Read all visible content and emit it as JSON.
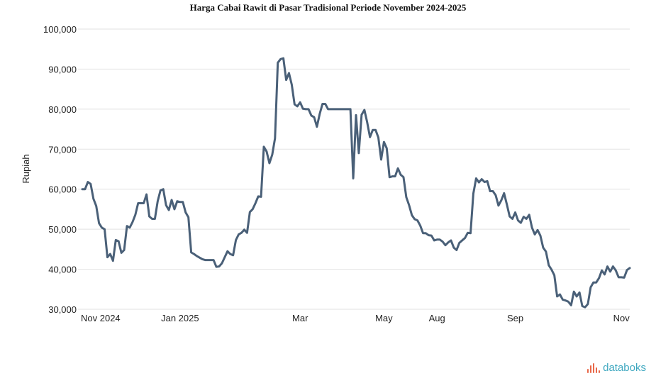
{
  "chart_data": {
    "type": "line",
    "title": "Harga Cabai Rawit di Pasar Tradisional Periode November 2024-2025",
    "ylabel": "Rupiah",
    "ylim": [
      30000,
      100000
    ],
    "yticks": [
      "30,000",
      "40,000",
      "50,000",
      "60,000",
      "70,000",
      "80,000",
      "90,000",
      "100,000"
    ],
    "xticks": [
      {
        "label": "Nov 2024",
        "index": 0
      },
      {
        "label": "Jan 2025",
        "index": 35
      },
      {
        "label": "Mar",
        "index": 78
      },
      {
        "label": "May",
        "index": 108
      },
      {
        "label": "Aug",
        "index": 127
      },
      {
        "label": "Sep",
        "index": 155
      },
      {
        "label": "Nov",
        "index": 193
      }
    ],
    "grid": true,
    "color": "#4a6078",
    "values": [
      60000,
      60000,
      61800,
      61300,
      57600,
      55800,
      51500,
      50400,
      50000,
      43000,
      43800,
      42100,
      47300,
      47000,
      44100,
      44800,
      50800,
      50400,
      51800,
      53600,
      56500,
      56500,
      56500,
      58700,
      53200,
      52600,
      52600,
      57000,
      59700,
      60000,
      56000,
      54800,
      57300,
      55000,
      57000,
      56800,
      56800,
      54200,
      53000,
      44200,
      43800,
      43300,
      42900,
      42500,
      42300,
      42300,
      42300,
      42300,
      40600,
      40700,
      41500,
      43000,
      44500,
      43800,
      43500,
      47300,
      48700,
      49100,
      49900,
      49100,
      54300,
      55000,
      56500,
      58200,
      58100,
      70600,
      69400,
      66500,
      68600,
      72700,
      91600,
      92500,
      92700,
      87300,
      89000,
      86100,
      81200,
      80700,
      81700,
      80100,
      80000,
      80000,
      78400,
      78000,
      75600,
      78800,
      81300,
      81300,
      80000,
      80000,
      80000,
      80000,
      80000,
      80000,
      80000,
      80000,
      80000,
      62700,
      78500,
      69000,
      78600,
      79800,
      76700,
      73000,
      74800,
      74800,
      72900,
      67400,
      71800,
      70200,
      63000,
      63200,
      63200,
      65200,
      63600,
      63000,
      58000,
      56000,
      53500,
      52500,
      52200,
      50900,
      49000,
      49000,
      48500,
      48400,
      47200,
      47400,
      47400,
      46900,
      46000,
      46700,
      47200,
      45400,
      44800,
      46600,
      47200,
      47800,
      49100,
      49000,
      58900,
      62700,
      61700,
      62500,
      61800,
      62000,
      59500,
      59500,
      58500,
      55900,
      57200,
      59000,
      56200,
      53200,
      52600,
      54200,
      52200,
      51600,
      53100,
      52600,
      53600,
      50400,
      48700,
      49800,
      48400,
      45400,
      44400,
      41000,
      39900,
      38500,
      33200,
      33700,
      32400,
      32200,
      31900,
      31000,
      34400,
      33200,
      34200,
      30800,
      30500,
      31300,
      35500,
      36700,
      36700,
      37800,
      39700,
      38700,
      40700,
      39400,
      40700,
      39700,
      38000,
      38000,
      37900,
      39800,
      40300
    ]
  },
  "brand": {
    "name": "databoks"
  }
}
